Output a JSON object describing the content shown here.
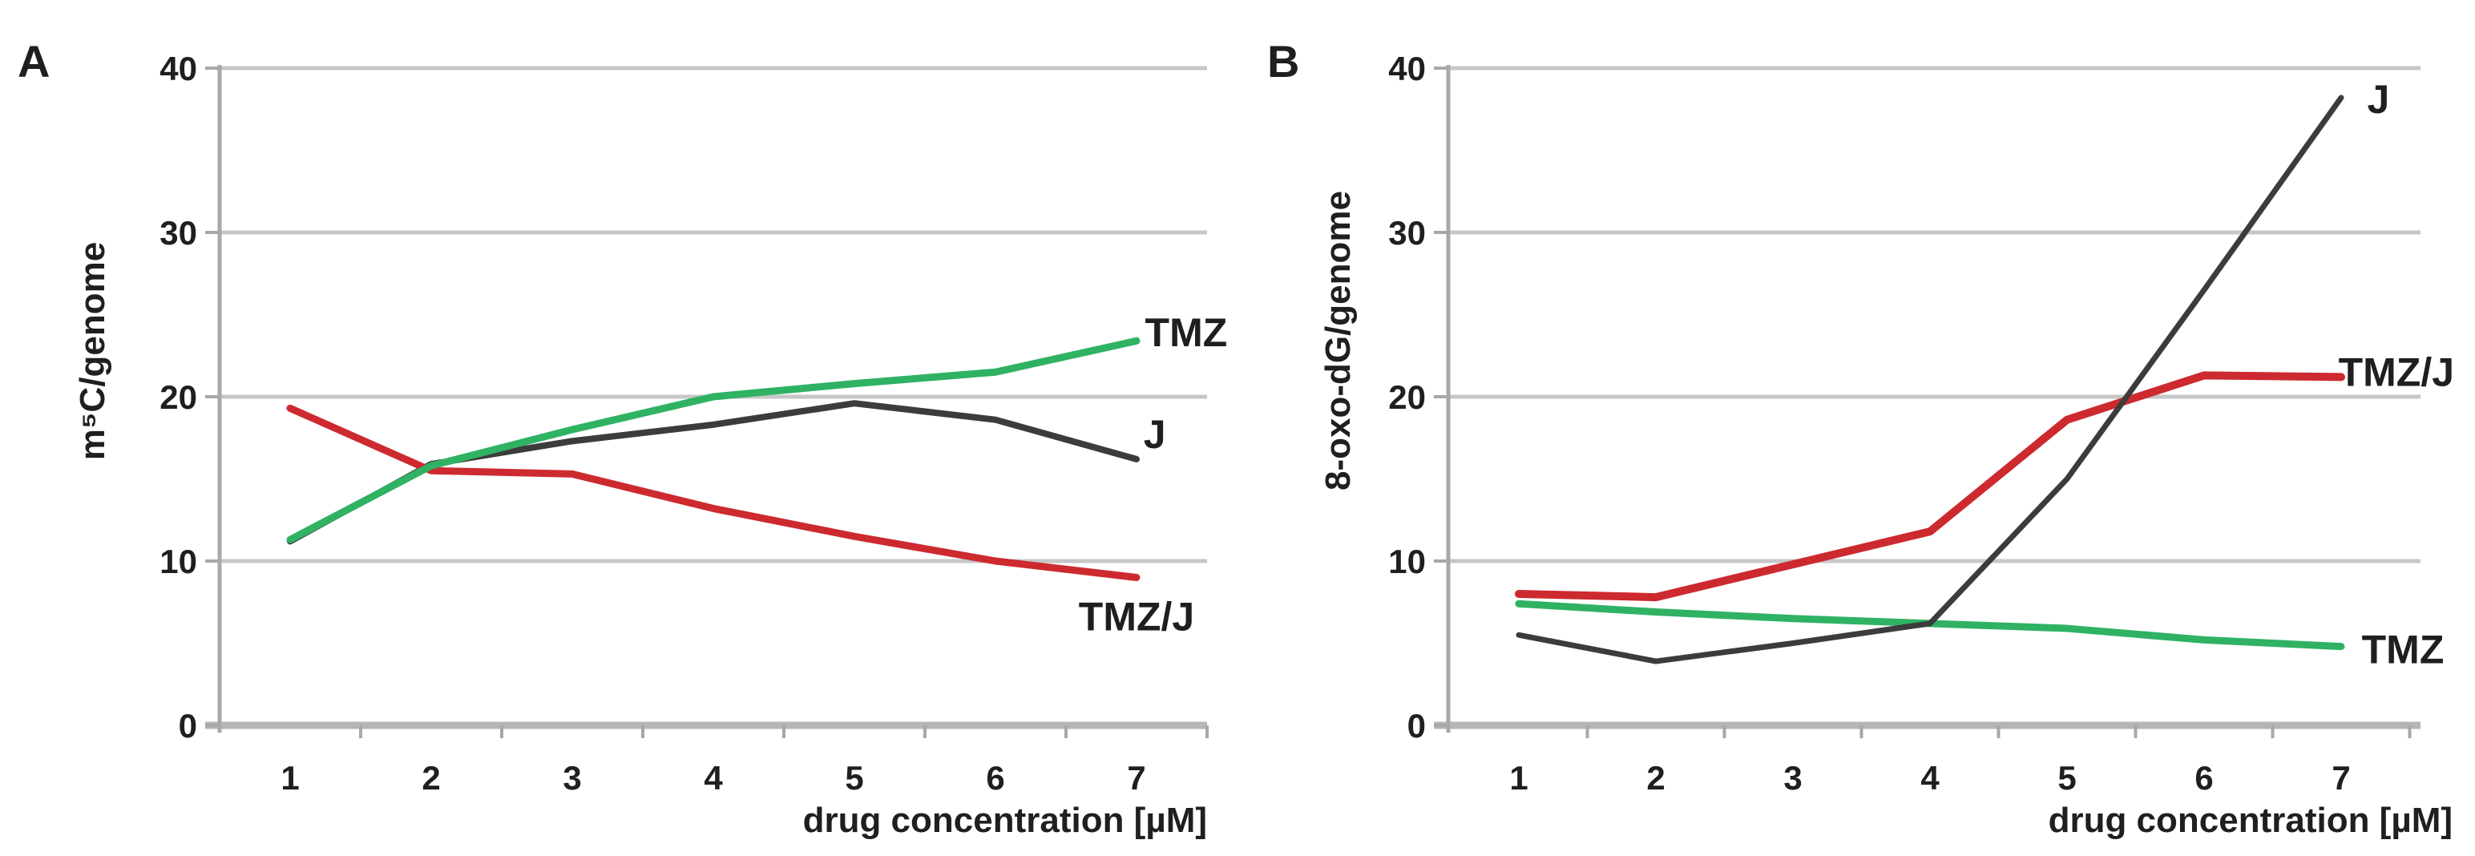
{
  "figure": {
    "background": "#ffffff",
    "grid_color": "#c7c7c7",
    "axis_color": "#a8a8a8",
    "baseline_color": "#b5b5b5",
    "text_color": "#1f1f1f"
  },
  "chart_data": [
    {
      "panel_letter": "A",
      "type": "line",
      "title": "",
      "ylabel": "m⁵C/genome",
      "xlabel": "drug concentration [µM]",
      "x": [
        1,
        2,
        3,
        4,
        5,
        6,
        7
      ],
      "xticklabels": [
        "1",
        "2",
        "3",
        "4",
        "5",
        "6",
        "7"
      ],
      "ylim": [
        0,
        40
      ],
      "yticks": [
        0,
        10,
        20,
        30,
        40
      ],
      "grid": "horizontal",
      "legend_position": "inline-right-labels",
      "series": [
        {
          "name": "J",
          "color": "#3c3c3c",
          "width": 8,
          "values": [
            11.2,
            15.9,
            17.3,
            18.3,
            19.6,
            18.6,
            16.2
          ],
          "label": {
            "text": "J",
            "x": 7.05,
            "y": 17.7,
            "anchor": "start"
          }
        },
        {
          "name": "TMZ/J",
          "color": "#cd2a2f",
          "width": 9,
          "values": [
            19.3,
            15.5,
            15.3,
            13.2,
            11.5,
            10.0,
            9.0
          ],
          "label": {
            "text": "TMZ/J",
            "x": 7.0,
            "y": 6.6,
            "anchor": "middle"
          }
        },
        {
          "name": "TMZ",
          "color": "#2fb263",
          "width": 9,
          "values": [
            11.3,
            15.8,
            18.0,
            20.0,
            20.8,
            21.5,
            23.4
          ],
          "label": {
            "text": "TMZ",
            "x": 7.06,
            "y": 23.9,
            "anchor": "start"
          }
        }
      ]
    },
    {
      "panel_letter": "B",
      "type": "line",
      "title": "",
      "ylabel": "8-oxo-dG/genome",
      "xlabel": "drug concentration [µM]",
      "x": [
        1,
        2,
        3,
        4,
        5,
        6,
        7
      ],
      "xticklabels": [
        "1",
        "2",
        "3",
        "4",
        "5",
        "6",
        "7"
      ],
      "ylim": [
        0,
        40
      ],
      "yticks": [
        0,
        10,
        20,
        30,
        40
      ],
      "grid": "horizontal",
      "legend_position": "inline-right-labels",
      "series": [
        {
          "name": "TMZ",
          "color": "#2fb263",
          "width": 9,
          "values": [
            7.4,
            6.9,
            6.5,
            6.2,
            5.9,
            5.2,
            4.8
          ],
          "label": {
            "text": "TMZ",
            "x": 7.15,
            "y": 4.6,
            "anchor": "start"
          }
        },
        {
          "name": "TMZ/J",
          "color": "#cd2a2f",
          "width": 10,
          "values": [
            8.0,
            7.8,
            9.8,
            11.8,
            18.6,
            21.3,
            21.2
          ],
          "label": {
            "text": "TMZ/J",
            "x": 6.98,
            "y": 21.5,
            "anchor": "start"
          }
        },
        {
          "name": "J",
          "color": "#3c3c3c",
          "width": 7,
          "values": [
            5.5,
            3.9,
            5.0,
            6.2,
            15.0,
            26.5,
            38.2
          ],
          "label": {
            "text": "J",
            "x": 7.19,
            "y": 38.1,
            "anchor": "start"
          }
        }
      ]
    }
  ]
}
